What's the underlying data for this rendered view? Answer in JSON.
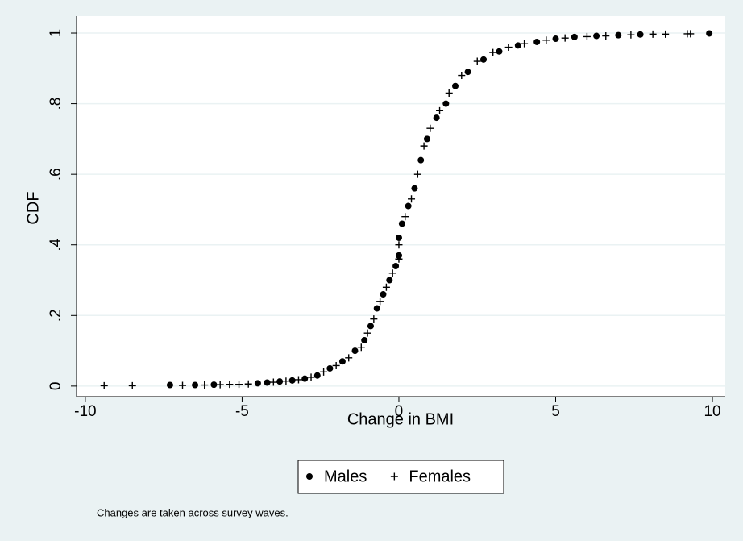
{
  "chart_data": {
    "type": "scatter",
    "x_label": "Change in BMI",
    "y_label": "CDF",
    "note": "Changes are taken across survey waves.",
    "xlim": [
      -10.28,
      10.41
    ],
    "ylim": [
      -0.03,
      1.048
    ],
    "xticks": [
      -10,
      -5,
      0,
      5,
      10
    ],
    "yticks": [
      0,
      {
        "value": 0.2,
        "label": ".2"
      },
      {
        "value": 0.4,
        "label": ".4"
      },
      {
        "value": 0.6,
        "label": ".6"
      },
      {
        "value": 0.8,
        "label": ".8"
      },
      1
    ],
    "grid": true,
    "legend": "bottom",
    "series": [
      {
        "name": "Males",
        "color": "#000000",
        "marker": "circle",
        "x": [
          -7.3,
          -6.5,
          -5.9,
          -4.5,
          -4.2,
          -3.8,
          -3.4,
          -3.0,
          -2.6,
          -2.2,
          -1.8,
          -1.4,
          -1.1,
          -0.9,
          -0.7,
          -0.5,
          -0.3,
          -0.1,
          0,
          0,
          0.1,
          0.3,
          0.5,
          0.7,
          0.9,
          1.2,
          1.5,
          1.8,
          2.2,
          2.7,
          3.2,
          3.8,
          4.4,
          5.0,
          5.6,
          6.3,
          7.0,
          7.7,
          9.9
        ],
        "values": [
          0.003,
          0.003,
          0.004,
          0.008,
          0.01,
          0.013,
          0.016,
          0.021,
          0.03,
          0.05,
          0.07,
          0.1,
          0.13,
          0.17,
          0.22,
          0.26,
          0.3,
          0.34,
          0.37,
          0.42,
          0.46,
          0.51,
          0.56,
          0.64,
          0.7,
          0.76,
          0.8,
          0.85,
          0.89,
          0.925,
          0.948,
          0.965,
          0.975,
          0.984,
          0.989,
          0.992,
          0.994,
          0.996,
          0.999
        ]
      },
      {
        "name": "Females",
        "color": "#000000",
        "marker": "plus",
        "x": [
          -9.4,
          -8.5,
          -6.9,
          -6.2,
          -5.7,
          -5.4,
          -5.1,
          -4.8,
          -4.0,
          -3.6,
          -3.2,
          -2.8,
          -2.4,
          -2.0,
          -1.6,
          -1.2,
          -1.0,
          -0.8,
          -0.6,
          -0.4,
          -0.2,
          0,
          0,
          0.2,
          0.4,
          0.6,
          0.8,
          1.0,
          1.3,
          1.6,
          2.0,
          2.5,
          3.0,
          3.5,
          4.0,
          4.7,
          5.3,
          6.0,
          6.6,
          7.4,
          8.1,
          8.5,
          9.2,
          9.3
        ],
        "values": [
          0.001,
          0.001,
          0.002,
          0.003,
          0.004,
          0.005,
          0.005,
          0.006,
          0.011,
          0.014,
          0.018,
          0.025,
          0.04,
          0.058,
          0.08,
          0.11,
          0.15,
          0.19,
          0.24,
          0.28,
          0.32,
          0.36,
          0.4,
          0.48,
          0.53,
          0.6,
          0.68,
          0.73,
          0.78,
          0.83,
          0.88,
          0.92,
          0.945,
          0.96,
          0.97,
          0.98,
          0.986,
          0.99,
          0.992,
          0.995,
          0.997,
          0.997,
          0.998,
          0.998
        ]
      }
    ]
  }
}
